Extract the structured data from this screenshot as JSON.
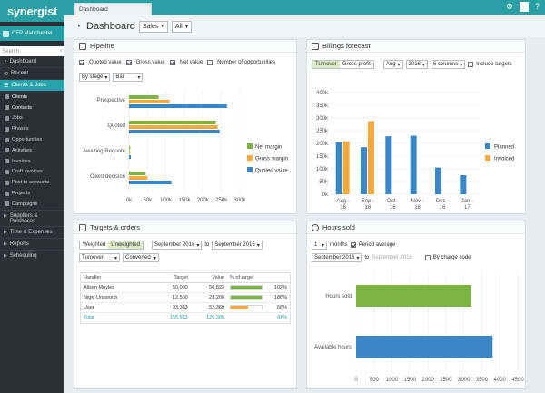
{
  "app": {
    "logo": "synergist",
    "tab": "Dashboard"
  },
  "header": {
    "title": "Dashboard",
    "view": "Sales",
    "filter": "All"
  },
  "sidebar": {
    "context": "CFP Manchester",
    "search_placeholder": "Search",
    "top_items": [
      {
        "label": "Dashboard"
      },
      {
        "label": "Recent"
      }
    ],
    "section": "Clients & Jobs",
    "sub_items": [
      {
        "label": "Clients"
      },
      {
        "label": "Contacts"
      },
      {
        "label": "Jobs"
      },
      {
        "label": "Phases"
      },
      {
        "label": "Opportunities"
      },
      {
        "label": "Activities"
      },
      {
        "label": "Invoices"
      },
      {
        "label": "Draft invoices"
      },
      {
        "label": "Post to accounts"
      },
      {
        "label": "Projects"
      },
      {
        "label": "Campaigns"
      }
    ],
    "groups": [
      {
        "label": "Suppliers & Purchases"
      },
      {
        "label": "Time & Expenses"
      },
      {
        "label": "Reports"
      },
      {
        "label": "Scheduling"
      }
    ]
  },
  "pipeline": {
    "title": "Pipeline",
    "checks": [
      {
        "label": "Quoted value",
        "checked": true
      },
      {
        "label": "Gross value",
        "checked": true
      },
      {
        "label": "Net value",
        "checked": true
      },
      {
        "label": "Number of opportunities",
        "checked": false
      }
    ],
    "group_by": "By stage",
    "chart_kind": "Bar"
  },
  "billings": {
    "title": "Billings forecast",
    "toggle": [
      "Turnover",
      "Gross profit"
    ],
    "month": "Aug",
    "year": "2016",
    "columns": "6 columns",
    "include_targets": "Include targets"
  },
  "targets": {
    "title": "Targets & orders",
    "toggle": [
      "Weighted",
      "Unweighted"
    ],
    "from": "September 2016",
    "to_label": "to",
    "to": "September 2016",
    "measure": "Turnover",
    "status": "Converted",
    "headers": {
      "handler": "Handler",
      "target": "Target",
      "value": "Value",
      "pct": "% of target"
    },
    "rows": [
      {
        "handler": "Alison Moyles",
        "target": "50,000",
        "value": "50,823",
        "pct": "102%",
        "frac": 1.0,
        "color": "#7cb342"
      },
      {
        "handler": "Nigel Unsworth",
        "target": "12,500",
        "value": "23,200",
        "pct": "186%",
        "frac": 1.0,
        "color": "#7cb342"
      },
      {
        "handler": "User",
        "target": "93,333",
        "value": "52,369",
        "pct": "56%",
        "frac": 0.56,
        "color": "#f7a93f"
      }
    ],
    "total": {
      "handler": "Total",
      "target": "155,833",
      "value": "126,385",
      "pct": "81%"
    }
  },
  "hours": {
    "title": "Hours sold",
    "months_value": "1",
    "months_label": "months",
    "period_average": "Period average",
    "from": "September 2016",
    "to_label": "to",
    "to": "September 2016",
    "by_charge_code": "By charge code"
  },
  "chart_data": [
    {
      "type": "bar",
      "orientation": "horizontal",
      "categories": [
        "Prospective",
        "Quoted",
        "Awaiting Requote",
        "Client decision"
      ],
      "series": [
        {
          "name": "Net margin",
          "color": "#7cb342",
          "values": [
            80000,
            235000,
            3000,
            45000
          ]
        },
        {
          "name": "Gross margin",
          "color": "#f7a93f",
          "values": [
            110000,
            240000,
            3000,
            50000
          ]
        },
        {
          "name": "Quoted value",
          "color": "#3b87c6",
          "values": [
            265000,
            245000,
            5000,
            115000
          ]
        }
      ],
      "xticks": [
        "0k",
        "50k",
        "100k",
        "150k",
        "200k",
        "250k",
        "300k"
      ],
      "xlim": [
        0,
        300000
      ],
      "legend": "right"
    },
    {
      "type": "bar",
      "categories": [
        "Aug - 16",
        "Sep - 16",
        "Oct - 16",
        "Nov - 16",
        "Dec - 16",
        "Jan - 17"
      ],
      "series": [
        {
          "name": "Planned",
          "color": "#3b87c6",
          "values": [
            205000,
            185000,
            228000,
            230000,
            105000,
            75000
          ]
        },
        {
          "name": "Invoiced",
          "color": "#f7a93f",
          "values": [
            208000,
            288000,
            0,
            0,
            0,
            0
          ]
        }
      ],
      "yticks": [
        "0k",
        "50k",
        "100k",
        "150k",
        "200k",
        "250k",
        "300k",
        "350k",
        "400k"
      ],
      "ylim": [
        0,
        400000
      ],
      "legend": "right"
    },
    {
      "type": "bar",
      "orientation": "horizontal",
      "categories": [
        "Hours sold",
        "Available hours"
      ],
      "series": [
        {
          "name": "",
          "values": [
            3200,
            3800
          ],
          "colors": [
            "#7cb342",
            "#3b87c6"
          ]
        }
      ],
      "xticks": [
        "0",
        "500",
        "1000",
        "1500",
        "2000",
        "2500",
        "3000",
        "3500",
        "4000",
        "4500"
      ],
      "xlim": [
        0,
        4500
      ]
    }
  ]
}
